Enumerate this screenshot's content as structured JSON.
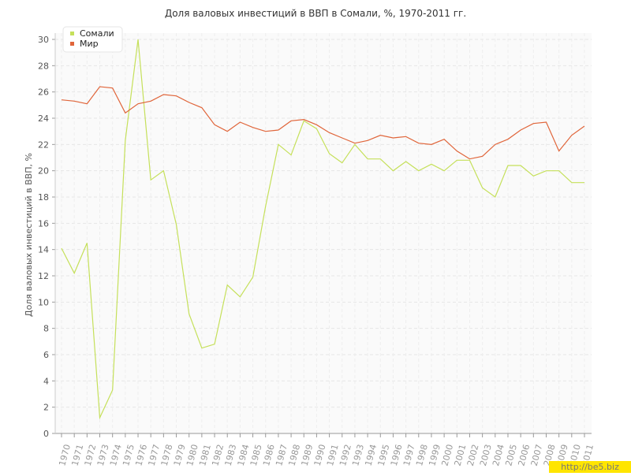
{
  "chart_data": {
    "type": "line",
    "title": "Доля валовых инвестиций в ВВП в Сомали, %, 1970-2011 гг.",
    "y_label": "Доля валовых инвестиций в ВВП, %",
    "categories": [
      "1970",
      "1971",
      "1972",
      "1973",
      "1974",
      "1975",
      "1976",
      "1977",
      "1978",
      "1979",
      "1980",
      "1981",
      "1982",
      "1983",
      "1984",
      "1985",
      "1986",
      "1987",
      "1988",
      "1989",
      "1990",
      "1991",
      "1992",
      "1993",
      "1994",
      "1995",
      "1996",
      "1997",
      "1998",
      "1999",
      "2000",
      "2001",
      "2002",
      "2003",
      "2004",
      "2005",
      "2006",
      "2007",
      "2008",
      "2009",
      "2010",
      "2011"
    ],
    "series": [
      {
        "name": "Сомали",
        "color": "#c5e05a",
        "values": [
          14.1,
          12.2,
          14.5,
          1.2,
          3.3,
          22.3,
          30.0,
          19.3,
          20.0,
          15.9,
          9.1,
          6.5,
          6.8,
          11.3,
          10.4,
          11.9,
          17.3,
          22.0,
          21.2,
          23.8,
          23.2,
          21.3,
          20.6,
          22.0,
          20.9,
          20.9,
          20.0,
          20.7,
          20.0,
          20.5,
          20.0,
          20.8,
          20.8,
          18.7,
          18.0,
          20.4,
          20.4,
          19.6,
          20.0,
          20.0,
          19.1,
          19.1
        ]
      },
      {
        "name": "Мир",
        "color": "#e0653a",
        "values": [
          25.4,
          25.3,
          25.1,
          26.4,
          26.3,
          24.4,
          25.1,
          25.3,
          25.8,
          25.7,
          25.2,
          24.8,
          23.5,
          23.0,
          23.7,
          23.3,
          23.0,
          23.1,
          23.8,
          23.9,
          23.5,
          22.9,
          22.5,
          22.1,
          22.3,
          22.7,
          22.5,
          22.6,
          22.1,
          22.0,
          22.4,
          21.5,
          20.9,
          21.1,
          22.0,
          22.4,
          23.1,
          23.6,
          23.7,
          21.5,
          22.7,
          23.4
        ]
      }
    ],
    "ylim": [
      0,
      30
    ],
    "yticks": [
      0,
      2,
      4,
      6,
      8,
      10,
      12,
      14,
      16,
      18,
      20,
      22,
      24,
      26,
      28,
      30
    ],
    "grid": true,
    "legend": "top-left",
    "watermark": "http://be5.biz"
  }
}
